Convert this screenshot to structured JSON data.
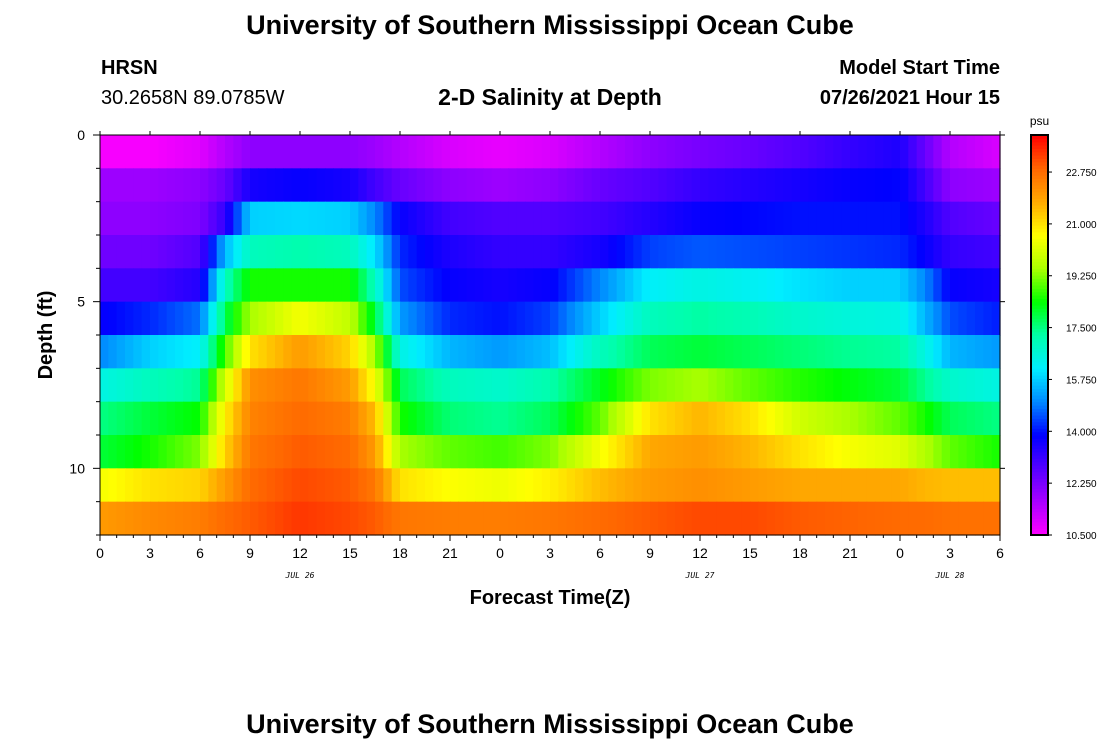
{
  "header": {
    "title": "University of Southern Mississippi Ocean Cube",
    "station": "HRSN",
    "coordinates": "30.2658N  89.0785W",
    "subtitle": "2-D Salinity at Depth",
    "model_start_label": "Model Start Time",
    "model_start_value": "07/26/2021 Hour 15",
    "footer_title": "University of Southern Mississippi Ocean Cube"
  },
  "chart_data": {
    "type": "heatmap",
    "title": "2-D Salinity at Depth",
    "xlabel": "Forecast Time(Z)",
    "ylabel": "Depth (ft)",
    "x_ticks": [
      "0",
      "3",
      "6",
      "9",
      "12",
      "15",
      "18",
      "21",
      "0",
      "3",
      "6",
      "9",
      "12",
      "15",
      "18",
      "21",
      "0",
      "3",
      "6"
    ],
    "x_range_hours": [
      0,
      54
    ],
    "date_labels": [
      {
        "label": "JUL 26",
        "hour": 12
      },
      {
        "label": "JUL 27",
        "hour": 36
      },
      {
        "label": "JUL 28",
        "hour": 51
      }
    ],
    "y_ticks": [
      "0",
      "5",
      "10"
    ],
    "y_tick_values": [
      0,
      5,
      10
    ],
    "y_range": [
      0,
      12
    ],
    "depth_layers": [
      0.5,
      1.5,
      2.5,
      3.5,
      4.5,
      5.5,
      6.5,
      7.5,
      8.5,
      9.5,
      10.5,
      11.5
    ],
    "hours": [
      0,
      3,
      6,
      7.5,
      9,
      12,
      15,
      16.5,
      18,
      21,
      24,
      27,
      30,
      33,
      36,
      39,
      42,
      45,
      48,
      49.5,
      51,
      54
    ],
    "salinity_psu": [
      [
        10.6,
        10.6,
        10.9,
        11.5,
        12.0,
        12.0,
        12.0,
        11.8,
        11.5,
        11.0,
        10.8,
        11.0,
        11.5,
        12.0,
        12.3,
        12.5,
        12.8,
        13.2,
        13.5,
        12.5,
        11.5,
        11.0
      ],
      [
        11.8,
        11.8,
        12.0,
        12.5,
        13.6,
        13.8,
        13.6,
        13.0,
        12.5,
        12.0,
        11.8,
        12.0,
        12.5,
        12.8,
        13.2,
        13.4,
        13.6,
        13.8,
        13.9,
        13.0,
        12.0,
        11.8
      ],
      [
        12.0,
        12.0,
        12.2,
        13.2,
        15.8,
        15.9,
        15.8,
        15.0,
        13.8,
        13.0,
        12.8,
        12.8,
        13.0,
        13.4,
        13.8,
        13.9,
        14.0,
        14.0,
        14.0,
        13.5,
        12.8,
        12.5
      ],
      [
        12.4,
        12.4,
        12.8,
        15.5,
        17.0,
        17.2,
        17.0,
        16.0,
        14.2,
        13.5,
        13.2,
        13.2,
        13.6,
        14.4,
        14.6,
        14.5,
        14.4,
        14.3,
        14.2,
        13.8,
        13.2,
        13.0
      ],
      [
        13.0,
        13.0,
        13.4,
        17.0,
        18.5,
        18.5,
        18.5,
        17.0,
        14.5,
        13.8,
        13.6,
        13.8,
        15.0,
        16.2,
        16.5,
        16.3,
        16.0,
        15.8,
        15.8,
        15.0,
        13.8,
        13.6
      ],
      [
        13.8,
        14.2,
        14.8,
        17.8,
        19.5,
        20.5,
        19.8,
        18.0,
        15.2,
        14.2,
        14.0,
        14.4,
        15.8,
        17.0,
        17.3,
        17.1,
        16.8,
        16.6,
        16.5,
        15.5,
        14.5,
        14.1
      ],
      [
        15.0,
        15.8,
        16.2,
        18.8,
        21.0,
        22.0,
        21.2,
        19.5,
        16.5,
        15.5,
        15.2,
        15.6,
        17.0,
        17.8,
        18.0,
        17.8,
        17.6,
        17.4,
        17.3,
        16.5,
        15.5,
        15.2
      ],
      [
        16.5,
        17.0,
        17.4,
        20.0,
        22.2,
        22.6,
        22.0,
        20.5,
        17.8,
        17.0,
        16.8,
        17.2,
        18.2,
        19.2,
        19.5,
        19.0,
        18.6,
        18.3,
        18.0,
        17.4,
        16.8,
        16.5
      ],
      [
        17.5,
        18.0,
        18.4,
        20.8,
        22.4,
        22.8,
        22.5,
        21.5,
        18.5,
        17.6,
        17.4,
        17.8,
        19.0,
        21.0,
        21.6,
        21.0,
        20.0,
        19.5,
        19.0,
        18.5,
        17.8,
        17.5
      ],
      [
        18.0,
        18.5,
        19.2,
        21.2,
        22.6,
        23.0,
        22.8,
        22.0,
        19.5,
        19.0,
        18.8,
        19.2,
        20.5,
        21.8,
        22.0,
        21.6,
        21.0,
        20.5,
        20.2,
        19.6,
        19.0,
        18.5
      ],
      [
        20.5,
        21.0,
        21.2,
        22.0,
        22.8,
        23.2,
        23.0,
        22.6,
        21.0,
        20.6,
        20.4,
        20.8,
        21.5,
        22.0,
        22.2,
        22.0,
        21.8,
        21.8,
        21.8,
        21.6,
        21.5,
        21.5
      ],
      [
        22.0,
        22.3,
        22.5,
        22.8,
        23.0,
        23.4,
        23.2,
        23.0,
        22.6,
        22.5,
        22.5,
        22.6,
        22.8,
        23.0,
        23.2,
        23.2,
        23.0,
        22.9,
        22.8,
        22.8,
        22.7,
        22.7
      ]
    ],
    "colorbar": {
      "unit": "psu",
      "min": 10.5,
      "max": 24.0,
      "tick_values": [
        10.5,
        12.25,
        14.0,
        15.75,
        17.5,
        19.25,
        21.0,
        22.75
      ],
      "tick_labels": [
        "10.500",
        "12.250",
        "14.000",
        "15.750",
        "17.500",
        "19.250",
        "21.000",
        "22.750"
      ],
      "colors": [
        "#ff00ff",
        "#aa00ff",
        "#5500ff",
        "#0000ff",
        "#0088ff",
        "#00eeff",
        "#00ffaa",
        "#00ff00",
        "#aaff00",
        "#ffff00",
        "#ffaa00",
        "#ff6600",
        "#ff0000"
      ]
    }
  }
}
